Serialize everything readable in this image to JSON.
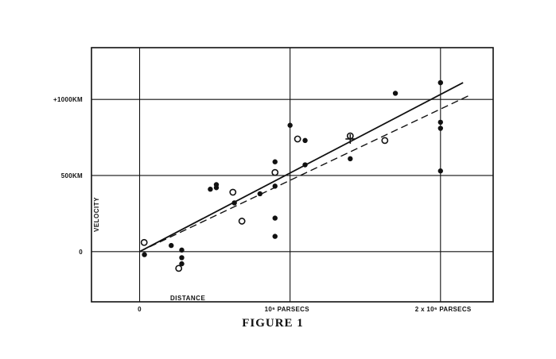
{
  "figure_caption": "FIGURE 1",
  "chart_data": {
    "type": "scatter",
    "title": "",
    "xlabel": "DISTANCE",
    "ylabel": "VELOCITY",
    "x_unit": "parsecs",
    "y_unit": "km/sec",
    "xlim": [
      -320000,
      2350000
    ],
    "ylim": [
      -330,
      1340
    ],
    "x_ticks": [
      {
        "value": 0,
        "label": "0"
      },
      {
        "value": 1000000,
        "label": "10⁶ PARSECS"
      },
      {
        "value": 2000000,
        "label": "2 x 10⁶ PARSECS"
      }
    ],
    "y_ticks": [
      {
        "value": 0,
        "label": "0"
      },
      {
        "value": 500,
        "label": "500KM"
      },
      {
        "value": 1000,
        "label": "+1000KM"
      }
    ],
    "grid": true,
    "series": [
      {
        "marker": "filled-circle",
        "points": [
          [
            32000,
            -20
          ],
          [
            210000,
            40
          ],
          [
            280000,
            10
          ],
          [
            280000,
            -40
          ],
          [
            280000,
            -80
          ],
          [
            470000,
            410
          ],
          [
            510000,
            440
          ],
          [
            510000,
            420
          ],
          [
            630000,
            320
          ],
          [
            800000,
            380
          ],
          [
            900000,
            590
          ],
          [
            900000,
            430
          ],
          [
            900000,
            220
          ],
          [
            900000,
            100
          ],
          [
            1000000,
            830
          ],
          [
            1100000,
            730
          ],
          [
            1100000,
            570
          ],
          [
            1400000,
            610
          ],
          [
            1700000,
            1040
          ],
          [
            2000000,
            1110
          ],
          [
            2000000,
            850
          ],
          [
            2000000,
            810
          ],
          [
            2000000,
            530
          ]
        ]
      },
      {
        "marker": "open-circle",
        "points": [
          [
            30000,
            60
          ],
          [
            260000,
            -110
          ],
          [
            620000,
            390
          ],
          [
            680000,
            200
          ],
          [
            900000,
            520
          ],
          [
            1050000,
            740
          ],
          [
            1400000,
            760
          ],
          [
            1630000,
            730
          ]
        ]
      },
      {
        "marker": "cross",
        "points": [
          [
            1400000,
            740
          ]
        ]
      }
    ],
    "lines": [
      {
        "style": "solid",
        "from": [
          0,
          0
        ],
        "to": [
          2150000,
          1110
        ]
      },
      {
        "style": "dashed",
        "from": [
          0,
          0
        ],
        "to": [
          2200000,
          1030
        ]
      }
    ]
  }
}
